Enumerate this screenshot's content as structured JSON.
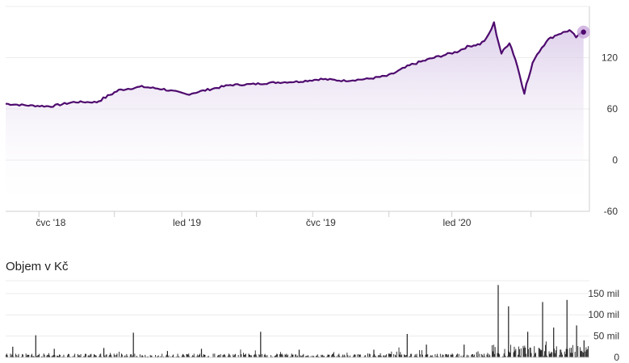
{
  "chart_data": [
    {
      "type": "area",
      "title": "",
      "x_tick_labels": [
        "čvc '18",
        "led '19",
        "čvc '19",
        "led '20"
      ],
      "y_ticks": [
        -60,
        0,
        60,
        120
      ],
      "ylim": [
        -60,
        180
      ],
      "grid": true,
      "colors": {
        "line": "#4e0a6e",
        "fill_top": "#d9c9e8",
        "marker_halo": "#c9a9dc",
        "marker": "#4e0a6e"
      },
      "series": [
        {
          "x": [
            "2018-05-01",
            "2018-06-01",
            "2018-07-01",
            "2018-08-01",
            "2018-09-01",
            "2018-10-01",
            "2018-11-01",
            "2018-12-01",
            "2019-01-01",
            "2019-02-01",
            "2019-03-01",
            "2019-04-01",
            "2019-05-01",
            "2019-06-01",
            "2019-07-01",
            "2019-08-01",
            "2019-09-01",
            "2019-10-01",
            "2019-11-01",
            "2019-12-01",
            "2020-01-01",
            "2020-01-15",
            "2020-02-01",
            "2020-02-10",
            "2020-02-20",
            "2020-03-01",
            "2020-03-12",
            "2020-03-20",
            "2020-04-01",
            "2020-04-15",
            "2020-05-01",
            "2020-05-15",
            "2020-06-01",
            "2020-06-10",
            "2020-06-20"
          ],
          "y": [
            66,
            64,
            63,
            68,
            68,
            82,
            86,
            83,
            77,
            83,
            88,
            89,
            91,
            92,
            95,
            93,
            95,
            99,
            112,
            120,
            127,
            133,
            136,
            142,
            160,
            125,
            138,
            118,
            80,
            120,
            140,
            147,
            152,
            144,
            150
          ]
        }
      ]
    },
    {
      "type": "bar",
      "title": "Objem v Kč",
      "y_tick_labels": [
        "150 mil",
        "100 mil",
        "50 mil",
        "0"
      ],
      "y_ticks": [
        150,
        100,
        50,
        0
      ],
      "ylim": [
        0,
        180
      ],
      "unit": "mil",
      "color": "#222222",
      "spikes": [
        {
          "x": "2018-05-10",
          "value": 25
        },
        {
          "x": "2018-06-10",
          "value": 52
        },
        {
          "x": "2018-07-05",
          "value": 20
        },
        {
          "x": "2018-09-10",
          "value": 22
        },
        {
          "x": "2018-10-20",
          "value": 58
        },
        {
          "x": "2018-12-05",
          "value": 15
        },
        {
          "x": "2019-01-20",
          "value": 20
        },
        {
          "x": "2019-04-10",
          "value": 60
        },
        {
          "x": "2019-06-01",
          "value": 18
        },
        {
          "x": "2019-09-10",
          "value": 18
        },
        {
          "x": "2019-10-25",
          "value": 55
        },
        {
          "x": "2019-11-20",
          "value": 30
        },
        {
          "x": "2020-01-10",
          "value": 30
        },
        {
          "x": "2020-02-25",
          "value": 170
        },
        {
          "x": "2020-03-10",
          "value": 120
        },
        {
          "x": "2020-04-05",
          "value": 60
        },
        {
          "x": "2020-04-25",
          "value": 130
        },
        {
          "x": "2020-05-10",
          "value": 70
        },
        {
          "x": "2020-05-28",
          "value": 135
        },
        {
          "x": "2020-06-10",
          "value": 75
        },
        {
          "x": "2020-06-20",
          "value": 40
        }
      ]
    }
  ]
}
